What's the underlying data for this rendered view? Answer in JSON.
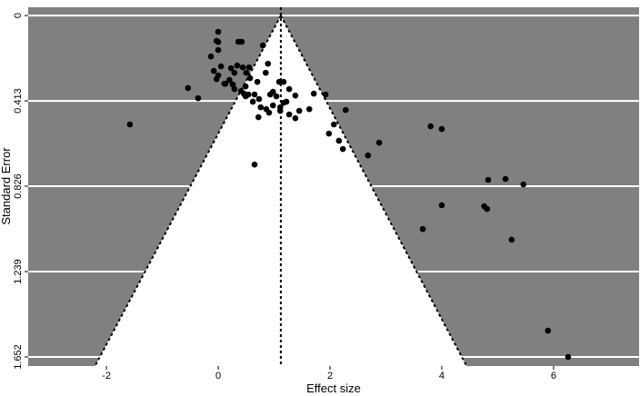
{
  "chart_data": {
    "type": "scatter",
    "x_label": "Effect size",
    "y_label": "Standard Error",
    "x": [
      -1.58,
      -0.54,
      -0.36,
      0.0,
      -0.03,
      0.0,
      -0.13,
      0.0,
      -0.08,
      0.0,
      0.05,
      -0.03,
      0.11,
      0.2,
      0.26,
      0.23,
      0.29,
      0.34,
      0.36,
      0.42,
      0.44,
      0.5,
      0.55,
      0.57,
      0.49,
      0.41,
      0.54,
      0.65,
      0.7,
      0.73,
      0.8,
      0.85,
      0.89,
      0.93,
      0.98,
      1.04,
      1.09,
      1.11,
      1.17,
      1.27,
      1.38,
      1.38,
      1.45,
      1.63,
      1.71,
      1.92,
      2.07,
      1.98,
      2.16,
      2.23,
      2.28,
      2.68,
      2.88,
      3.8,
      4.0,
      4.0,
      3.66,
      4.76,
      4.83,
      4.81,
      5.14,
      5.46,
      5.25,
      5.9,
      6.26,
      0.65,
      0.72,
      0.91,
      1.27,
      0.76,
      0.86,
      0.98,
      1.17,
      0.62,
      0.46,
      0.29,
      0.13,
      0.49,
      1.11,
      1.22
    ],
    "values": [
      0.527,
      0.351,
      0.4,
      0.079,
      0.123,
      0.128,
      0.198,
      0.167,
      0.268,
      0.29,
      0.246,
      0.308,
      0.33,
      0.312,
      0.334,
      0.255,
      0.277,
      0.242,
      0.127,
      0.127,
      0.251,
      0.277,
      0.251,
      0.303,
      0.343,
      0.365,
      0.382,
      0.382,
      0.321,
      0.404,
      0.145,
      0.277,
      0.233,
      0.382,
      0.435,
      0.391,
      0.321,
      0.444,
      0.321,
      0.356,
      0.387,
      0.497,
      0.461,
      0.453,
      0.378,
      0.382,
      0.527,
      0.571,
      0.606,
      0.646,
      0.457,
      0.677,
      0.615,
      0.536,
      0.549,
      0.918,
      1.033,
      0.923,
      0.795,
      0.936,
      0.791,
      0.817,
      1.085,
      1.525,
      1.652,
      0.721,
      0.492,
      0.47,
      0.479,
      0.444,
      0.453,
      0.369,
      0.422,
      0.417,
      0.378,
      0.356,
      0.33,
      0.391,
      0.461,
      0.417
    ],
    "color": "#000000",
    "background": "#808080",
    "funnel_color": "#ffffff",
    "summary_effect": 1.12,
    "funnel_z": 1.96,
    "xlim": [
      -3.4,
      7.53
    ],
    "xticks": [
      -2,
      0,
      2,
      4,
      6
    ],
    "ylim": [
      1.696,
      -0.04
    ],
    "yticks": [
      0,
      0.413,
      0.826,
      1.239,
      1.652
    ],
    "grid": true
  }
}
